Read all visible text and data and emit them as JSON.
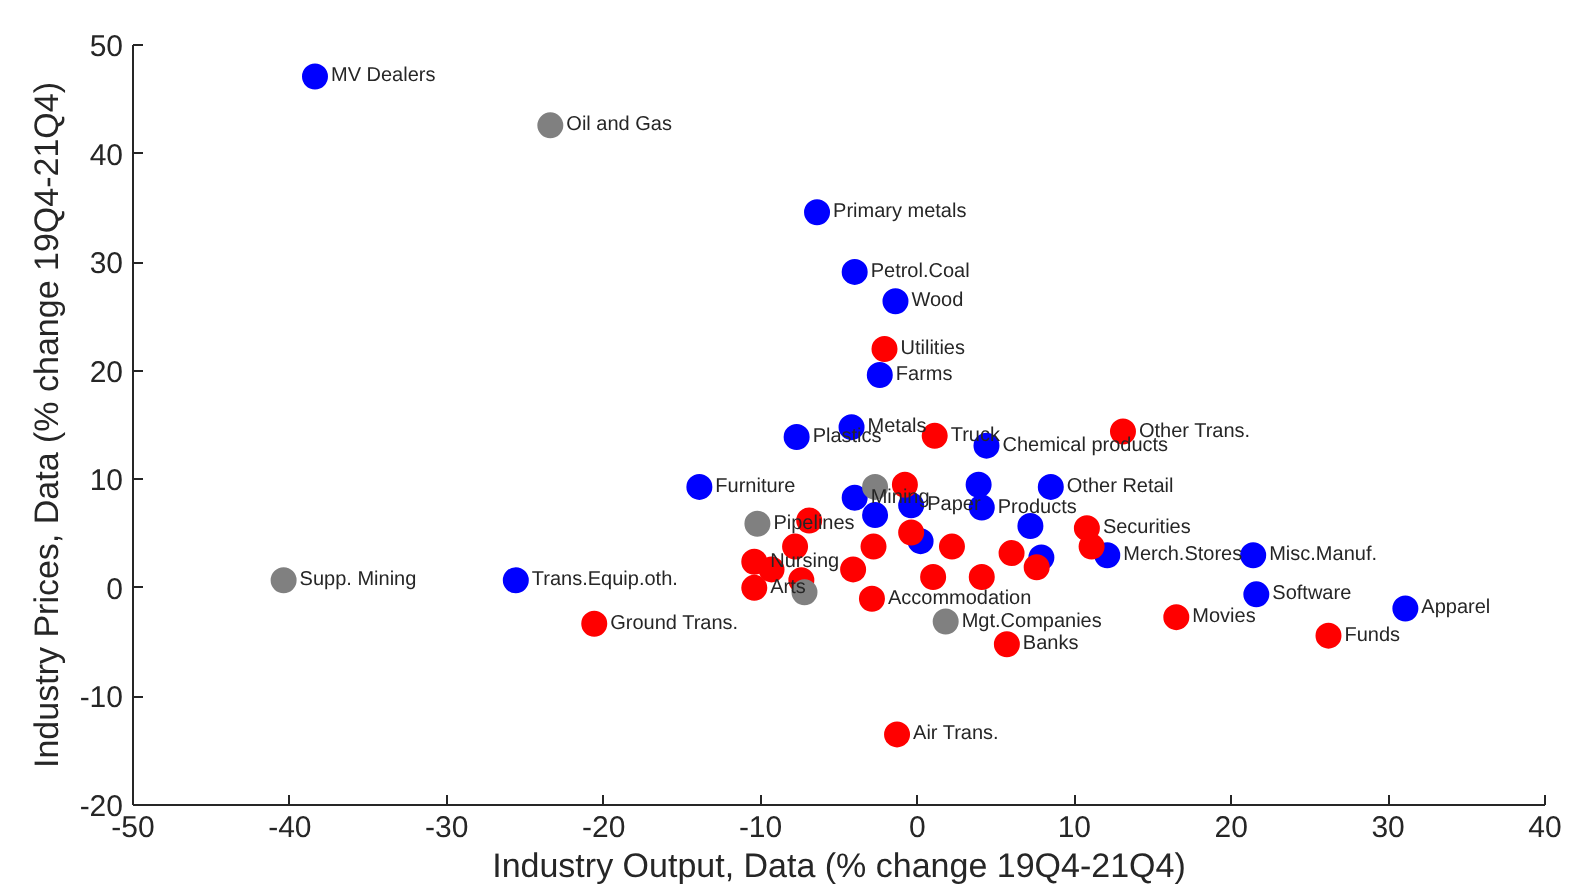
{
  "chart_data": {
    "type": "scatter",
    "xlabel": "Industry Output, Data (% change 19Q4-21Q4)",
    "ylabel": "Industry Prices, Data (% change 19Q4-21Q4)",
    "xlim": [
      -50,
      40
    ],
    "xticks": [
      -50,
      -40,
      -30,
      -20,
      -10,
      0,
      10,
      20,
      30,
      40
    ],
    "ylim": [
      -20,
      50
    ],
    "yticks": [
      -20,
      -10,
      0,
      10,
      20,
      30,
      40,
      50
    ],
    "grid": false,
    "marker": "circle",
    "series": [
      {
        "color": "#0000ff",
        "x": [
          -38.4,
          -6.4,
          -4.0,
          -1.4,
          -2.4,
          -4.2,
          -7.7,
          4.4,
          -13.9,
          -25.6,
          21.4,
          21.6,
          31.1,
          8.5,
          12.1,
          3.9,
          -4.0,
          -0.4,
          4.1,
          7.2,
          -2.7,
          0.2,
          7.9
        ],
        "values": [
          47.1,
          34.6,
          29.1,
          26.4,
          19.6,
          14.8,
          13.9,
          13.1,
          9.3,
          0.7,
          3.0,
          -0.6,
          -1.9,
          9.3,
          3.0,
          9.5,
          8.3,
          7.6,
          7.4,
          5.7,
          6.7,
          4.3,
          2.8
        ],
        "value_labels": [
          "MV Dealers",
          "Primary metals",
          "Petrol.Coal",
          "Wood",
          "Farms",
          "Metals",
          "Plastics",
          "Chemical products",
          "Furniture",
          "Trans.Equip.oth.",
          "Misc.Manuf.",
          "Software",
          "Apparel",
          "Other Retail",
          "Merch.Stores",
          null,
          "Mining",
          "Paper",
          "Products",
          null,
          null,
          null,
          null
        ]
      },
      {
        "color": "#ff0000",
        "x": [
          -2.1,
          1.1,
          13.1,
          -20.6,
          -1.3,
          5.7,
          16.5,
          26.2,
          -2.9,
          10.8,
          -0.8,
          -6.9,
          -10.4,
          -10.4,
          -7.8,
          -4.1,
          -2.8,
          -0.4,
          2.2,
          4.1,
          6.0,
          7.6,
          11.1,
          1.0,
          -7.4,
          -9.3
        ],
        "values": [
          22.0,
          14.0,
          14.4,
          -3.3,
          -13.5,
          -5.2,
          -2.7,
          -4.4,
          -1.0,
          5.5,
          9.5,
          6.2,
          2.4,
          0.0,
          3.8,
          1.7,
          3.8,
          5.1,
          3.8,
          1.0,
          3.2,
          1.9,
          3.8,
          1.0,
          0.7,
          1.7
        ],
        "value_labels": [
          "Utilities",
          "Truck",
          "Other Trans.",
          "Ground Trans.",
          "Air Trans.",
          "Banks",
          "Movies",
          "Funds",
          "Accommodation",
          "Securities",
          null,
          null,
          "Nursing",
          "Arts",
          null,
          null,
          null,
          null,
          null,
          null,
          null,
          null,
          null,
          null,
          null,
          null
        ]
      },
      {
        "color": "#808080",
        "x": [
          -23.4,
          -40.4,
          1.8,
          -10.2,
          -2.7,
          -7.2
        ],
        "values": [
          42.6,
          0.7,
          -3.1,
          5.9,
          9.3,
          -0.4
        ],
        "value_labels": [
          "Oil and Gas",
          "Supp. Mining",
          "Mgt.Companies",
          "Pipelines",
          null,
          null
        ]
      }
    ]
  }
}
